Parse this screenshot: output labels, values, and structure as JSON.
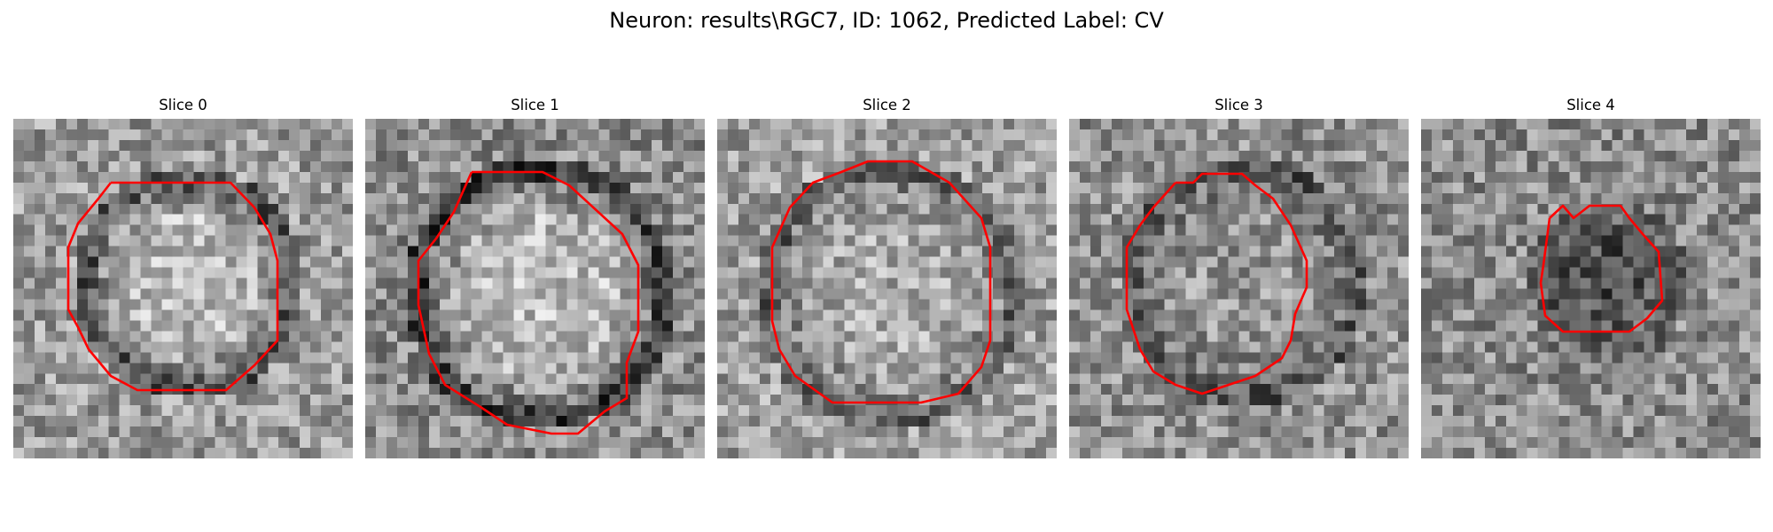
{
  "figure": {
    "title": "Neuron: results\\RGC7, ID: 1062, Predicted Label: CV"
  },
  "panels": [
    {
      "title": "Slice 0"
    },
    {
      "title": "Slice 1"
    },
    {
      "title": "Slice 2"
    },
    {
      "title": "Slice 3"
    },
    {
      "title": "Slice 4"
    }
  ],
  "colors": {
    "contour": "#ff0000",
    "background": "#ffffff",
    "colormap": "gray"
  }
}
